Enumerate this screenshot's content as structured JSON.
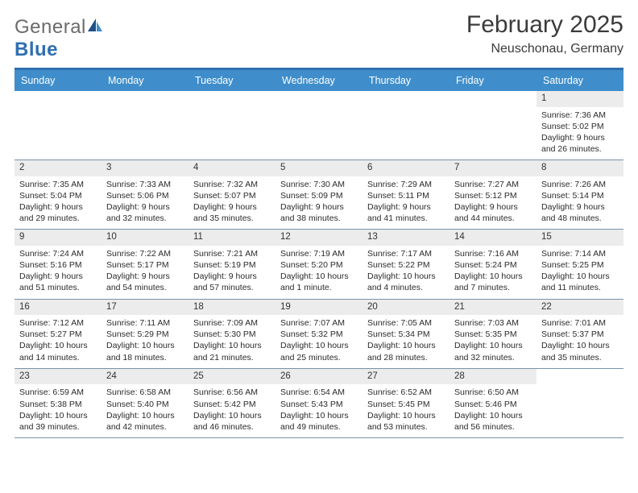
{
  "brand": {
    "word1": "General",
    "word2": "Blue",
    "accent": "#2f6fb0",
    "neutral": "#6b6b6b"
  },
  "title": {
    "month": "February 2025",
    "location": "Neuschonau, Germany"
  },
  "calendar": {
    "header_bg": "#3f8ecb",
    "header_fg": "#ffffff",
    "border_top": "#2f6fb0",
    "row_border": "#7a93a8",
    "daynum_bg": "#ececec",
    "day_names": [
      "Sunday",
      "Monday",
      "Tuesday",
      "Wednesday",
      "Thursday",
      "Friday",
      "Saturday"
    ],
    "weeks": [
      [
        {
          "n": "",
          "blank": true
        },
        {
          "n": "",
          "blank": true
        },
        {
          "n": "",
          "blank": true
        },
        {
          "n": "",
          "blank": true
        },
        {
          "n": "",
          "blank": true
        },
        {
          "n": "",
          "blank": true
        },
        {
          "n": "1",
          "sr": "Sunrise: 7:36 AM",
          "ss": "Sunset: 5:02 PM",
          "dl": "Daylight: 9 hours and 26 minutes."
        }
      ],
      [
        {
          "n": "2",
          "sr": "Sunrise: 7:35 AM",
          "ss": "Sunset: 5:04 PM",
          "dl": "Daylight: 9 hours and 29 minutes."
        },
        {
          "n": "3",
          "sr": "Sunrise: 7:33 AM",
          "ss": "Sunset: 5:06 PM",
          "dl": "Daylight: 9 hours and 32 minutes."
        },
        {
          "n": "4",
          "sr": "Sunrise: 7:32 AM",
          "ss": "Sunset: 5:07 PM",
          "dl": "Daylight: 9 hours and 35 minutes."
        },
        {
          "n": "5",
          "sr": "Sunrise: 7:30 AM",
          "ss": "Sunset: 5:09 PM",
          "dl": "Daylight: 9 hours and 38 minutes."
        },
        {
          "n": "6",
          "sr": "Sunrise: 7:29 AM",
          "ss": "Sunset: 5:11 PM",
          "dl": "Daylight: 9 hours and 41 minutes."
        },
        {
          "n": "7",
          "sr": "Sunrise: 7:27 AM",
          "ss": "Sunset: 5:12 PM",
          "dl": "Daylight: 9 hours and 44 minutes."
        },
        {
          "n": "8",
          "sr": "Sunrise: 7:26 AM",
          "ss": "Sunset: 5:14 PM",
          "dl": "Daylight: 9 hours and 48 minutes."
        }
      ],
      [
        {
          "n": "9",
          "sr": "Sunrise: 7:24 AM",
          "ss": "Sunset: 5:16 PM",
          "dl": "Daylight: 9 hours and 51 minutes."
        },
        {
          "n": "10",
          "sr": "Sunrise: 7:22 AM",
          "ss": "Sunset: 5:17 PM",
          "dl": "Daylight: 9 hours and 54 minutes."
        },
        {
          "n": "11",
          "sr": "Sunrise: 7:21 AM",
          "ss": "Sunset: 5:19 PM",
          "dl": "Daylight: 9 hours and 57 minutes."
        },
        {
          "n": "12",
          "sr": "Sunrise: 7:19 AM",
          "ss": "Sunset: 5:20 PM",
          "dl": "Daylight: 10 hours and 1 minute."
        },
        {
          "n": "13",
          "sr": "Sunrise: 7:17 AM",
          "ss": "Sunset: 5:22 PM",
          "dl": "Daylight: 10 hours and 4 minutes."
        },
        {
          "n": "14",
          "sr": "Sunrise: 7:16 AM",
          "ss": "Sunset: 5:24 PM",
          "dl": "Daylight: 10 hours and 7 minutes."
        },
        {
          "n": "15",
          "sr": "Sunrise: 7:14 AM",
          "ss": "Sunset: 5:25 PM",
          "dl": "Daylight: 10 hours and 11 minutes."
        }
      ],
      [
        {
          "n": "16",
          "sr": "Sunrise: 7:12 AM",
          "ss": "Sunset: 5:27 PM",
          "dl": "Daylight: 10 hours and 14 minutes."
        },
        {
          "n": "17",
          "sr": "Sunrise: 7:11 AM",
          "ss": "Sunset: 5:29 PM",
          "dl": "Daylight: 10 hours and 18 minutes."
        },
        {
          "n": "18",
          "sr": "Sunrise: 7:09 AM",
          "ss": "Sunset: 5:30 PM",
          "dl": "Daylight: 10 hours and 21 minutes."
        },
        {
          "n": "19",
          "sr": "Sunrise: 7:07 AM",
          "ss": "Sunset: 5:32 PM",
          "dl": "Daylight: 10 hours and 25 minutes."
        },
        {
          "n": "20",
          "sr": "Sunrise: 7:05 AM",
          "ss": "Sunset: 5:34 PM",
          "dl": "Daylight: 10 hours and 28 minutes."
        },
        {
          "n": "21",
          "sr": "Sunrise: 7:03 AM",
          "ss": "Sunset: 5:35 PM",
          "dl": "Daylight: 10 hours and 32 minutes."
        },
        {
          "n": "22",
          "sr": "Sunrise: 7:01 AM",
          "ss": "Sunset: 5:37 PM",
          "dl": "Daylight: 10 hours and 35 minutes."
        }
      ],
      [
        {
          "n": "23",
          "sr": "Sunrise: 6:59 AM",
          "ss": "Sunset: 5:38 PM",
          "dl": "Daylight: 10 hours and 39 minutes."
        },
        {
          "n": "24",
          "sr": "Sunrise: 6:58 AM",
          "ss": "Sunset: 5:40 PM",
          "dl": "Daylight: 10 hours and 42 minutes."
        },
        {
          "n": "25",
          "sr": "Sunrise: 6:56 AM",
          "ss": "Sunset: 5:42 PM",
          "dl": "Daylight: 10 hours and 46 minutes."
        },
        {
          "n": "26",
          "sr": "Sunrise: 6:54 AM",
          "ss": "Sunset: 5:43 PM",
          "dl": "Daylight: 10 hours and 49 minutes."
        },
        {
          "n": "27",
          "sr": "Sunrise: 6:52 AM",
          "ss": "Sunset: 5:45 PM",
          "dl": "Daylight: 10 hours and 53 minutes."
        },
        {
          "n": "28",
          "sr": "Sunrise: 6:50 AM",
          "ss": "Sunset: 5:46 PM",
          "dl": "Daylight: 10 hours and 56 minutes."
        },
        {
          "n": "",
          "blank": true
        }
      ]
    ]
  }
}
